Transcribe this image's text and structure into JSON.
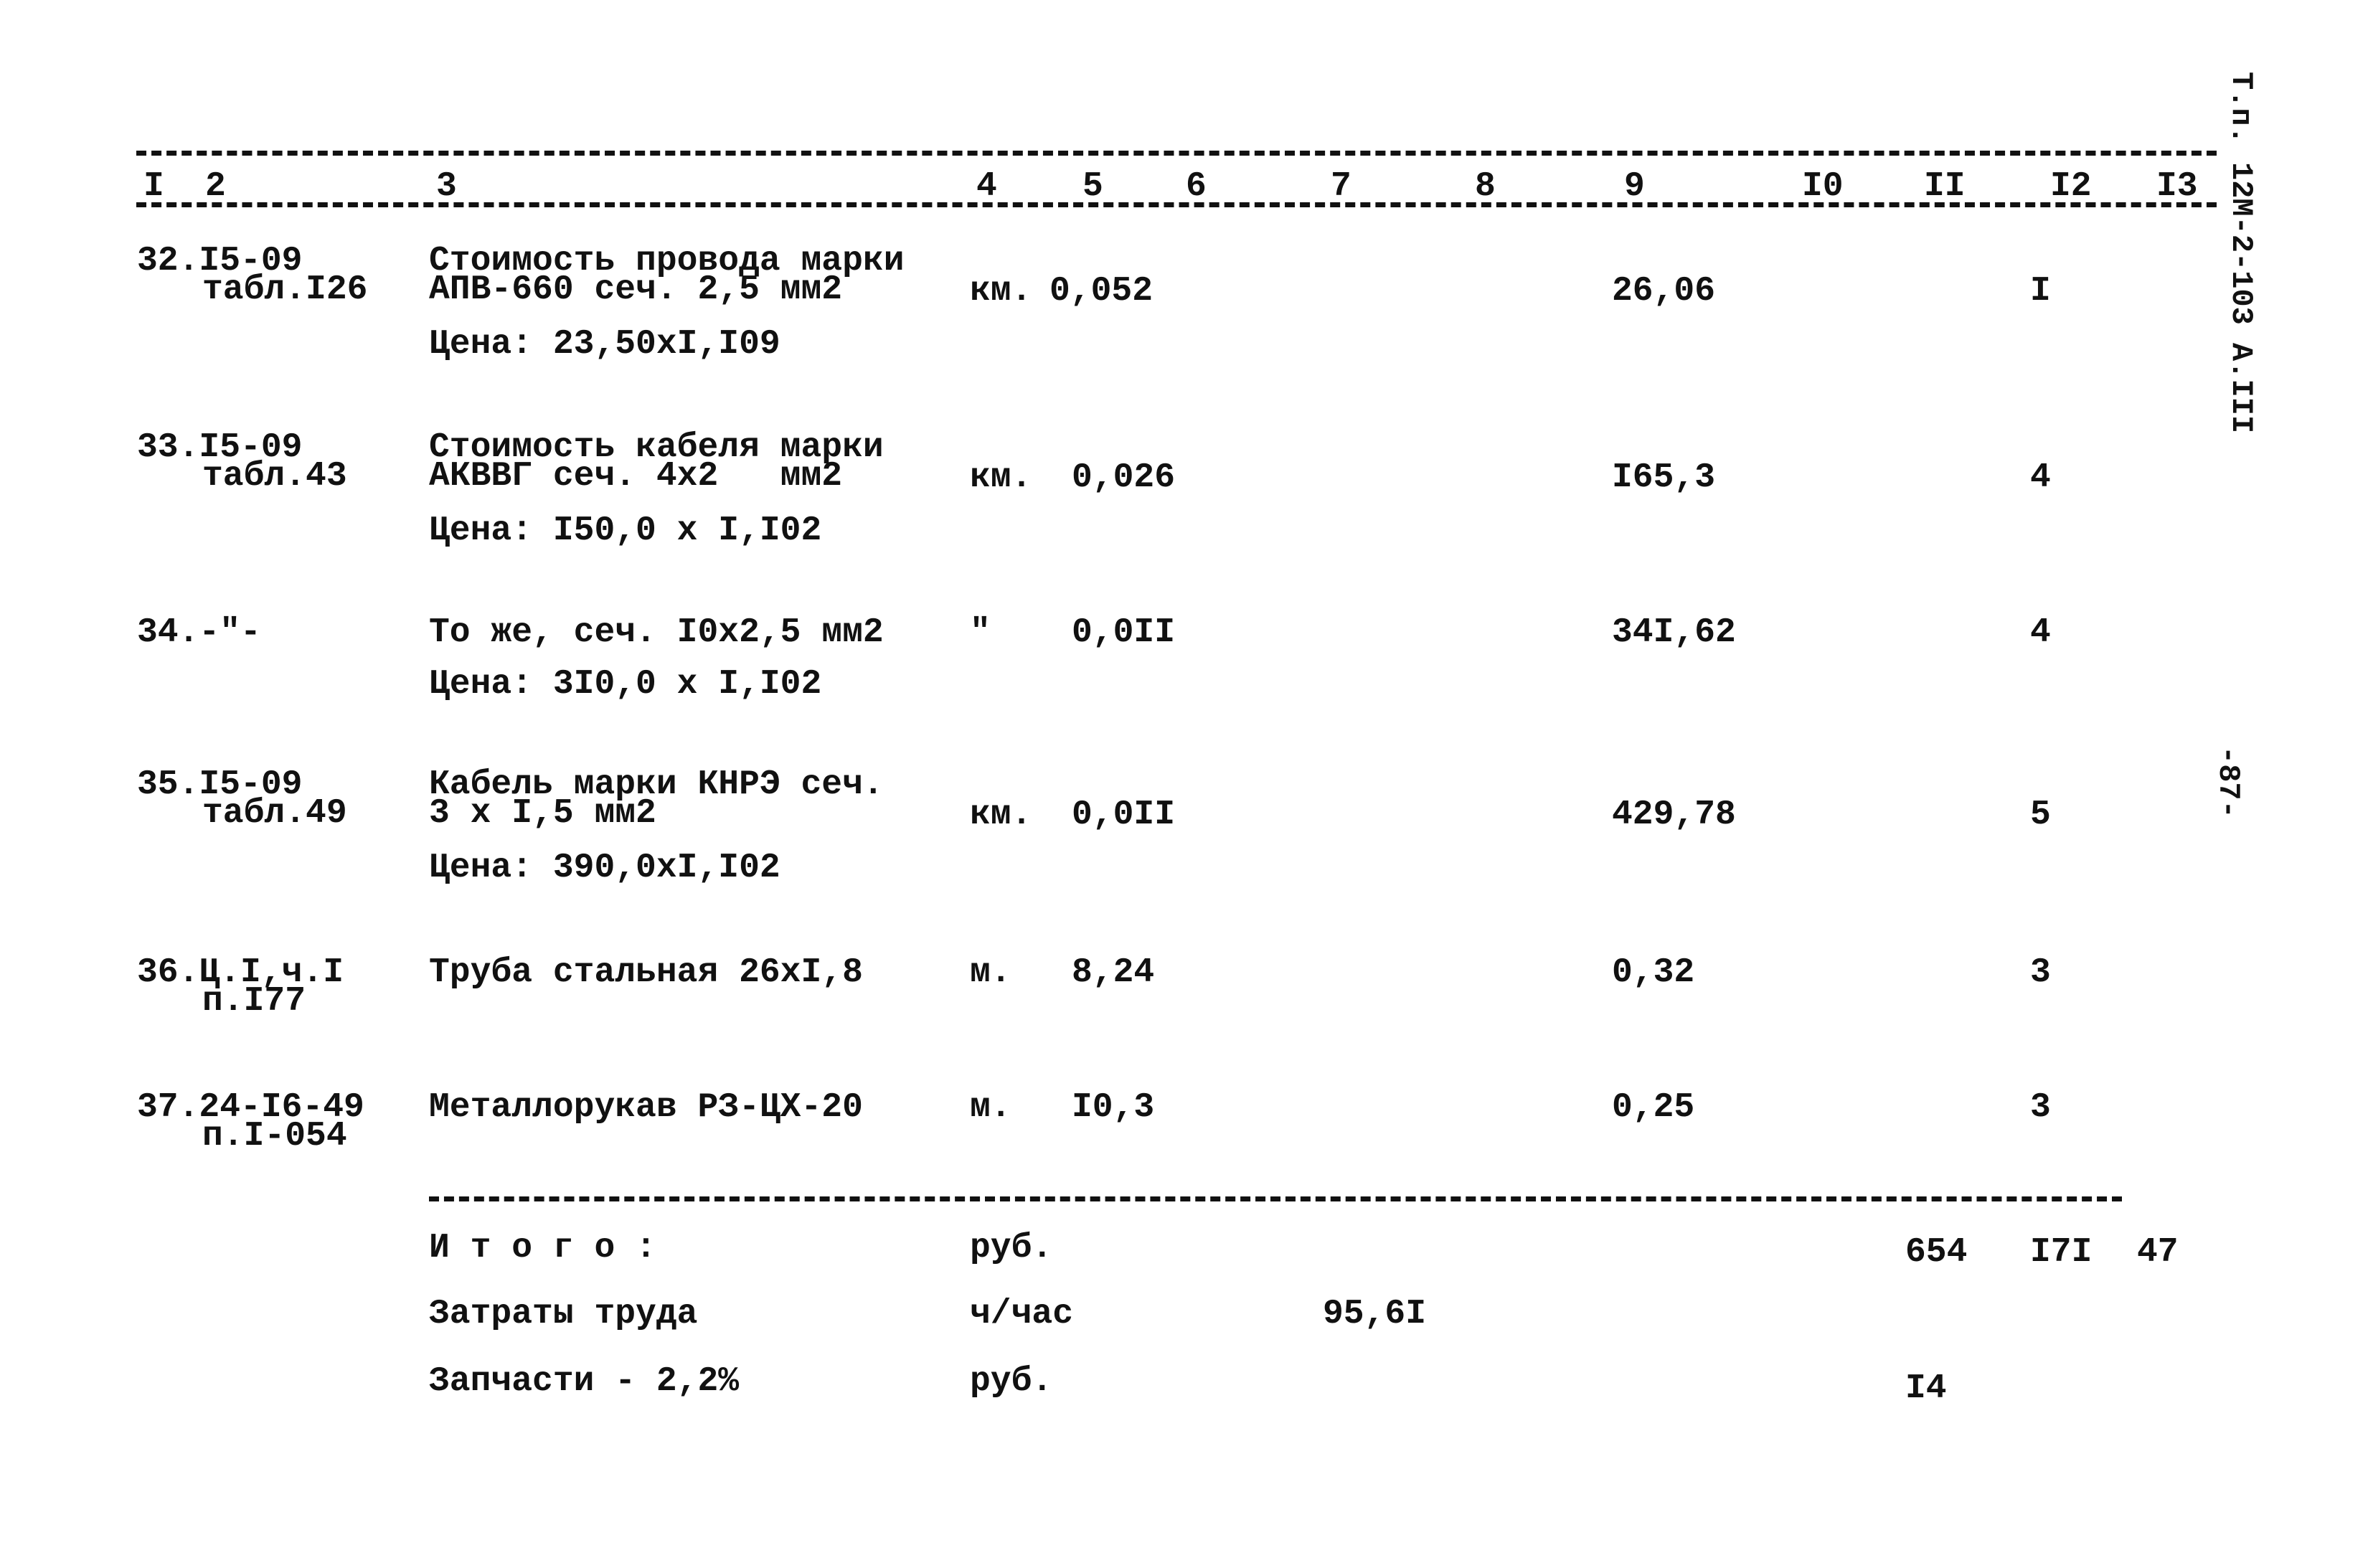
{
  "margin_code": "Т.п. 12М-2-103 А.III",
  "page_number": "-87-",
  "header_columns": [
    "I",
    "2",
    "3",
    "4",
    "5",
    "6",
    "7",
    "8",
    "9",
    "I0",
    "II",
    "I2",
    "I3"
  ],
  "rows": [
    {
      "num": "32.I5-09",
      "ref": "табл.I26",
      "desc": [
        "Стоимость провода марки",
        "АПВ-660 сеч. 2,5 мм2"
      ],
      "price": "Цена: 23,50хI,I09",
      "unit": "км.",
      "qty": "0,052",
      "col9": "26,06",
      "col12": "I"
    },
    {
      "num": "33.I5-09",
      "ref": "табл.43",
      "desc": [
        "Стоимость кабеля марки",
        "АКВВГ сеч. 4х2   мм2"
      ],
      "price": "Цена: I50,0 х I,I02",
      "unit": "км.",
      "qty": "0,026",
      "col9": "I65,3",
      "col12": "4"
    },
    {
      "num": "34.-\"-",
      "ref": "",
      "desc": [
        "То же, сеч. I0х2,5 мм2"
      ],
      "price": "Цена: 3I0,0 х I,I02",
      "unit": "\"",
      "qty": "0,0II",
      "col9": "34I,62",
      "col12": "4"
    },
    {
      "num": "35.I5-09",
      "ref": "табл.49",
      "desc": [
        "Кабель марки КНРЭ сеч.",
        "3 х I,5 мм2"
      ],
      "price": "Цена: 390,0хI,I02",
      "unit": "км.",
      "qty": "0,0II",
      "col9": "429,78",
      "col12": "5"
    },
    {
      "num": "36.Ц.I,ч.I",
      "ref": "п.I77",
      "desc": [
        "Труба стальная 26хI,8"
      ],
      "price": "",
      "unit": "м.",
      "qty": "8,24",
      "col9": "0,32",
      "col12": "3"
    },
    {
      "num": "37.24-I6-49",
      "ref": "п.I-054",
      "desc": [
        "Металлорукав РЗ-ЦХ-20"
      ],
      "price": "",
      "unit": "м.",
      "qty": "I0,3",
      "col9": "0,25",
      "col12": "3"
    }
  ],
  "totals": {
    "total_label": "И т о г о :",
    "total_unit": "руб.",
    "total_col11": "654",
    "total_col12": "I7I",
    "total_col13": "47",
    "labor_label": "Затраты труда",
    "labor_unit": "ч/час",
    "labor_col7": "95,6I",
    "parts_label": "Запчасти - 2,2%",
    "parts_unit": "руб.",
    "parts_col11": "I4"
  }
}
